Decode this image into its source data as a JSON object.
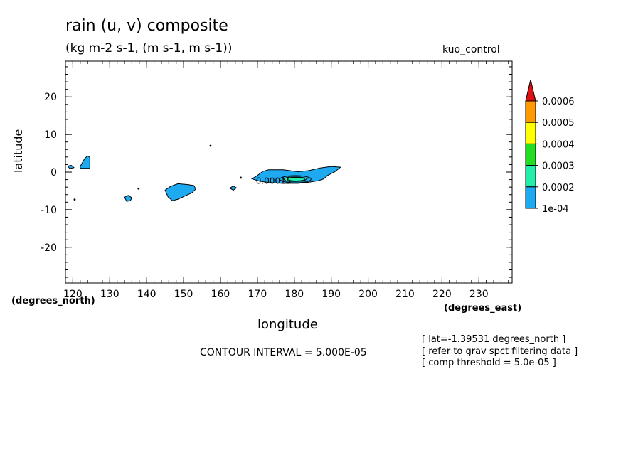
{
  "chart_data": {
    "type": "heatmap",
    "title": "rain (u, v) composite",
    "units_line": "(kg m-2 s-1, (m s-1, m s-1))",
    "case_label": "kuo_control",
    "xlabel": "longitude",
    "ylabel": "latitude",
    "x_units": "(degrees_east)",
    "y_units": "(degrees_north)",
    "xlim": [
      118,
      239
    ],
    "ylim": [
      -29.5,
      29.5
    ],
    "x_ticks": [
      120,
      130,
      140,
      150,
      160,
      170,
      180,
      190,
      200,
      210,
      220,
      230
    ],
    "y_ticks": [
      20,
      10,
      0,
      -10,
      -20
    ],
    "colorbar": {
      "levels": [
        "0.0006",
        "0.0005",
        "0.0004",
        "0.0003",
        "0.0002",
        "1e-04"
      ],
      "colors": [
        "#e01010",
        "#ff9900",
        "#ffff00",
        "#22dd22",
        "#22eeaa",
        "#1eaaf0"
      ]
    },
    "contour_label": "0.00015",
    "contour_interval": "CONTOUR INTERVAL = 5.000E-05",
    "notes": [
      "[ lat=-1.39531 degrees_north ]",
      "[ refer to grav spct filtering data ]",
      "[ comp threshold = 5.0e-05 ]"
    ],
    "regions": [
      {
        "level": "1e-04",
        "points": [
          [
            122,
            1.5
          ],
          [
            123.2,
            3.6
          ],
          [
            124,
            4.3
          ],
          [
            124.6,
            4
          ],
          [
            124.6,
            1
          ],
          [
            122,
            1
          ]
        ]
      },
      {
        "level": "1e-04",
        "points": [
          [
            118.6,
            1.6
          ],
          [
            119.6,
            1.8
          ],
          [
            120.3,
            1.2
          ],
          [
            119.2,
            0.9
          ]
        ]
      },
      {
        "level": "1e-04",
        "points": [
          [
            134,
            -6.7
          ],
          [
            135,
            -6.2
          ],
          [
            136,
            -6.8
          ],
          [
            135.6,
            -7.6
          ],
          [
            134.6,
            -7.8
          ]
        ]
      },
      {
        "level": "1e-04",
        "points": [
          [
            145,
            -4.8
          ],
          [
            146.5,
            -3.8
          ],
          [
            148.5,
            -3.1
          ],
          [
            151,
            -3.3
          ],
          [
            152.8,
            -3.6
          ],
          [
            153.3,
            -4.5
          ],
          [
            152.3,
            -5.5
          ],
          [
            150.5,
            -6.3
          ],
          [
            148.5,
            -7.2
          ],
          [
            147,
            -7.6
          ],
          [
            145.8,
            -6.6
          ]
        ]
      },
      {
        "level": "1e-04",
        "points": [
          [
            162.5,
            -4.3
          ],
          [
            163.5,
            -3.7
          ],
          [
            164.3,
            -4.2
          ],
          [
            163.5,
            -4.8
          ]
        ]
      },
      {
        "level": "1e-04",
        "points": [
          [
            168.5,
            -1.8
          ],
          [
            170,
            -0.9
          ],
          [
            171.5,
            0.2
          ],
          [
            173,
            0.6
          ],
          [
            177,
            0.6
          ],
          [
            181,
            0.1
          ],
          [
            184,
            0.4
          ],
          [
            187,
            1.1
          ],
          [
            190,
            1.5
          ],
          [
            192.5,
            1.3
          ],
          [
            191,
            0.1
          ],
          [
            189,
            -0.9
          ],
          [
            188,
            -1.8
          ],
          [
            186.5,
            -2.3
          ],
          [
            184,
            -2.7
          ],
          [
            181,
            -3
          ],
          [
            177,
            -3
          ],
          [
            173,
            -2.8
          ],
          [
            170.5,
            -2.4
          ]
        ]
      },
      {
        "level": "0.0002",
        "points": [
          [
            177,
            -1.8
          ],
          [
            178.5,
            -1.3
          ],
          [
            181.5,
            -1.3
          ],
          [
            183.5,
            -1.7
          ],
          [
            182.5,
            -2.4
          ],
          [
            180,
            -2.5
          ],
          [
            177.8,
            -2.4
          ]
        ]
      }
    ],
    "dots": [
      [
        157.3,
        7
      ],
      [
        165.5,
        -1.5
      ],
      [
        137.8,
        -4.4
      ],
      [
        120.5,
        -7.3
      ]
    ]
  }
}
